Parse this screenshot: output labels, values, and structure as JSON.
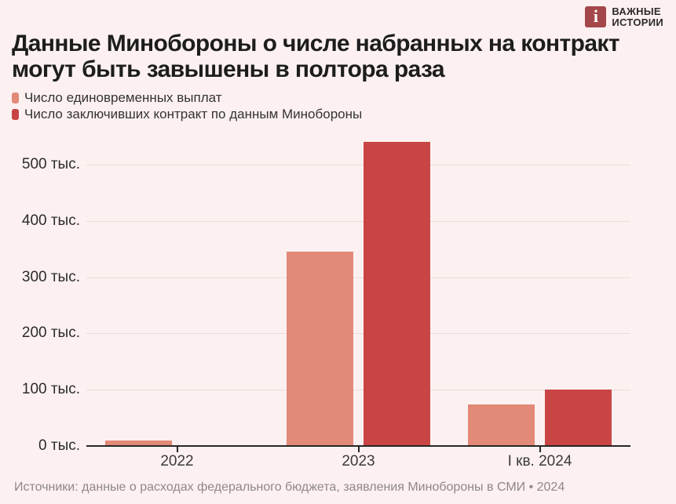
{
  "page": {
    "background_color": "#fcf1f0"
  },
  "logo": {
    "icon_letter": "i",
    "icon_color": "#a4474a",
    "brand_line1": "ВАЖНЫЕ",
    "brand_line2": "ИСТОРИИ"
  },
  "title": {
    "line1": "Данные Минобороны о числе набранных на контракт",
    "line2": "могут быть завышены в полтора раза"
  },
  "legend": [
    {
      "label": "Число единовременных выплат",
      "color": "#e28977"
    },
    {
      "label": "Число заключивших контракт по данным Минобороны",
      "color": "#c94545"
    }
  ],
  "chart_data": {
    "type": "bar",
    "categories": [
      "2022",
      "2023",
      "I кв. 2024"
    ],
    "series": [
      {
        "name": "Число единовременных выплат",
        "color": "#e28977",
        "values": [
          10,
          345,
          74
        ]
      },
      {
        "name": "Число заключивших контракт по данным Минобороны",
        "color": "#c94545",
        "values": [
          null,
          540,
          100
        ]
      }
    ],
    "y_ticks": [
      {
        "value": 0,
        "label": "0 тыс."
      },
      {
        "value": 100,
        "label": "100 тыс."
      },
      {
        "value": 200,
        "label": "200 тыс."
      },
      {
        "value": 300,
        "label": "300 тыс."
      },
      {
        "value": 400,
        "label": "400 тыс."
      },
      {
        "value": 500,
        "label": "500 тыс."
      }
    ],
    "unit": "тыс.",
    "ylim": [
      0,
      560
    ],
    "grid": true,
    "legend_position": "top-left",
    "gridline_color": "#eadcdc",
    "axis_color": "#262626"
  },
  "footer": {
    "source": "Источники: данные о расходах федерального бюджета, заявления Минобороны в СМИ • 2024"
  }
}
